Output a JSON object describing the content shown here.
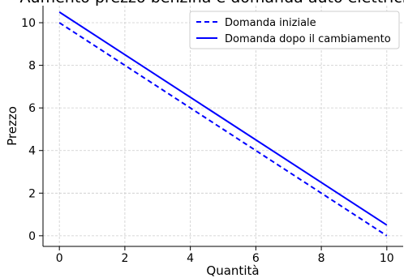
{
  "chart_data": {
    "type": "line",
    "title": "Aumento prezzo benzina e domanda auto elettriche",
    "xlabel": "Quantità",
    "ylabel": "Prezzo",
    "xlim": [
      -0.5,
      10.5
    ],
    "ylim": [
      -0.5,
      10.8
    ],
    "xticks": [
      0,
      2,
      4,
      6,
      8,
      10
    ],
    "yticks": [
      0,
      2,
      4,
      6,
      8,
      10
    ],
    "grid": true,
    "legend_position": "top-right",
    "series": [
      {
        "name": "Domanda iniziale",
        "color": "#0000ff",
        "style": "dashed",
        "x": [
          0,
          10
        ],
        "y": [
          10,
          0
        ]
      },
      {
        "name": "Domanda dopo il cambiamento",
        "color": "#0000ff",
        "style": "solid",
        "x": [
          0,
          10
        ],
        "y": [
          10.5,
          0.5
        ]
      }
    ]
  }
}
